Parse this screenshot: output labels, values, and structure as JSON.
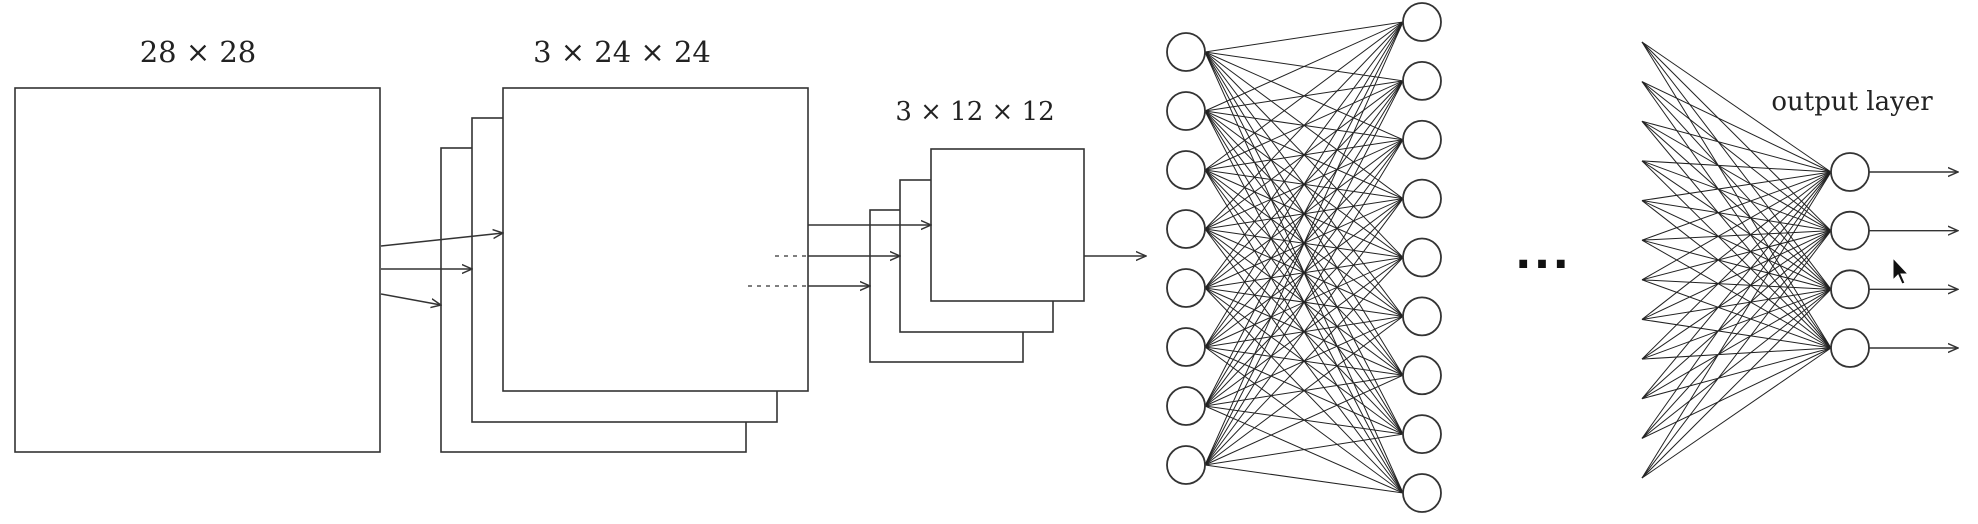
{
  "labels": {
    "input_size": "28 × 28",
    "conv_size": "3 × 24 × 24",
    "pool_size": "3 × 12 × 12",
    "ellipsis": "...",
    "output_layer": "output layer"
  },
  "network": {
    "dense_input_neurons": 8,
    "dense_hidden_neurons": 9,
    "output_neurons": 4
  },
  "colors": {
    "stroke": "#333333",
    "background": "#ffffff"
  },
  "icons": {
    "cursor": "mouse-pointer-icon"
  }
}
